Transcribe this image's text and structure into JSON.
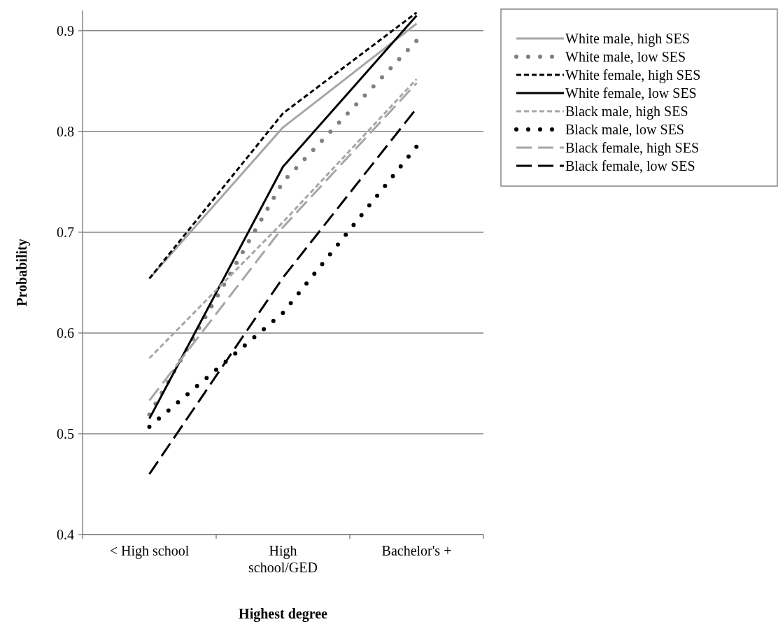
{
  "chart_data": {
    "type": "line",
    "xlabel": "Highest degree",
    "ylabel": "Probability",
    "categories": [
      "< High school",
      "High school/GED",
      "Bachelor's +"
    ],
    "ylim": [
      0.4,
      0.92
    ],
    "yticks": [
      {
        "value": 0.4,
        "label": "0.4"
      },
      {
        "value": 0.5,
        "label": "0.5"
      },
      {
        "value": 0.6,
        "label": "0.6"
      },
      {
        "value": 0.7,
        "label": "0.7"
      },
      {
        "value": 0.8,
        "label": "0.8"
      },
      {
        "value": 0.9,
        "label": "0.9"
      }
    ],
    "grid": "y",
    "legend": "right",
    "marker": "none",
    "series": [
      {
        "name": "White male, high SES",
        "color": "#a6a6a6",
        "line_style": "solid",
        "values": [
          0.654,
          0.804,
          0.907
        ]
      },
      {
        "name": "White male, low SES",
        "color": "#808080",
        "line_style": "dotted",
        "values": [
          0.519,
          0.75,
          0.89
        ]
      },
      {
        "name": "White female, high SES",
        "color": "#000000",
        "line_style": "dashed",
        "values": [
          0.654,
          0.818,
          0.918
        ]
      },
      {
        "name": "White female, low SES",
        "color": "#000000",
        "line_style": "solid",
        "values": [
          0.515,
          0.765,
          0.915
        ]
      },
      {
        "name": "Black male, high SES",
        "color": "#a6a6a6",
        "line_style": "dashed",
        "values": [
          0.575,
          0.71,
          0.852
        ]
      },
      {
        "name": "Black male, low SES",
        "color": "#000000",
        "line_style": "dotted",
        "values": [
          0.507,
          0.62,
          0.785
        ]
      },
      {
        "name": "Black female, high SES",
        "color": "#a6a6a6",
        "line_style": "long-dashed",
        "values": [
          0.533,
          0.705,
          0.848
        ]
      },
      {
        "name": "Black female, low SES",
        "color": "#000000",
        "line_style": "long-dashed",
        "values": [
          0.46,
          0.655,
          0.823
        ]
      }
    ]
  }
}
